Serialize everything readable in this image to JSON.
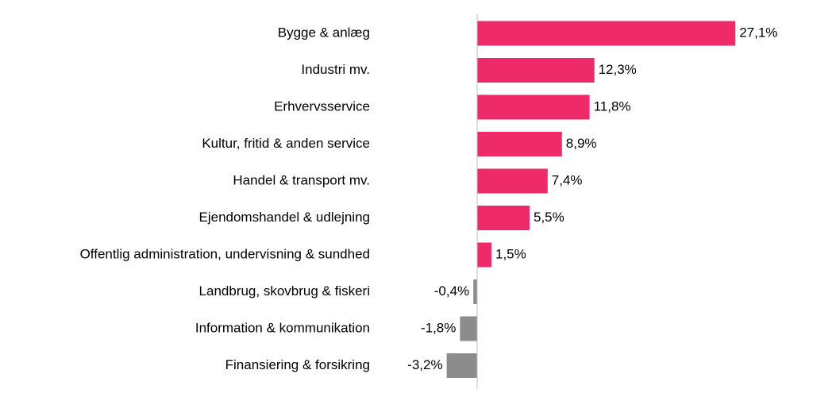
{
  "chart_data": {
    "type": "bar",
    "orientation": "horizontal",
    "categories": [
      "Bygge & anlæg",
      "Industri mv.",
      "Erhvervsservice",
      "Kultur, fritid & anden service",
      "Handel & transport mv.",
      "Ejendomshandel & udlejning",
      "Offentlig administration, undervisning & sundhed",
      "Landbrug, skovbrug & fiskeri",
      "Information & kommunikation",
      "Finansiering & forsikring"
    ],
    "values": [
      27.1,
      12.3,
      11.8,
      8.9,
      7.4,
      5.5,
      1.5,
      -0.4,
      -1.8,
      -3.2
    ],
    "value_labels": [
      "27,1%",
      "12,3%",
      "11,8%",
      "8,9%",
      "7,4%",
      "5,5%",
      "1,5%",
      "-0,4%",
      "-1,8%",
      "-3,2%"
    ],
    "unit": "%",
    "colors": {
      "positive": "#ee2a68",
      "negative": "#8c8c8c",
      "axis": "#bfbfbf"
    },
    "grid": false,
    "legend": "none"
  }
}
